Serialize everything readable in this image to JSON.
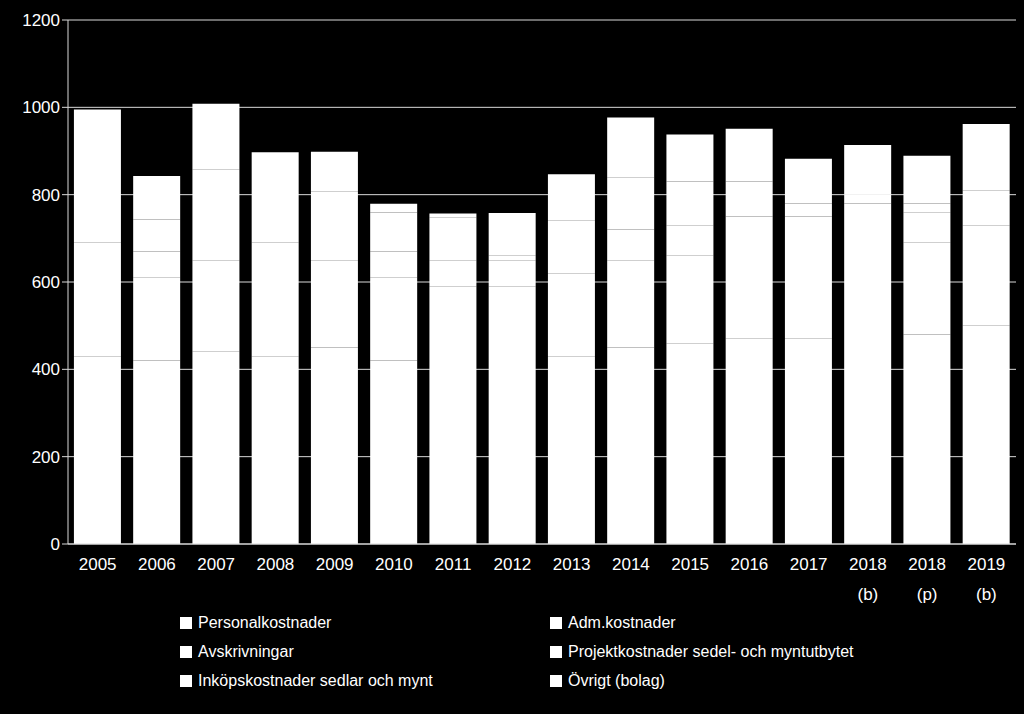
{
  "chart_data": {
    "type": "bar",
    "stacked": true,
    "grid": true,
    "legend": "bottom",
    "categories": [
      "2005",
      "2006",
      "2007",
      "2008",
      "2009",
      "2010",
      "2011",
      "2012",
      "2013",
      "2014",
      "2015",
      "2016",
      "2017",
      "2018 (b)",
      "2018 (p)",
      "2019 (b)"
    ],
    "series": [
      {
        "name": "Personalkostnader",
        "color": "#ffffff",
        "values": [
          430,
          420,
          440,
          430,
          450,
          420,
          410,
          410,
          430,
          450,
          460,
          470,
          470,
          490,
          480,
          500
        ]
      },
      {
        "name": "Adm.kostnader",
        "color": "#ffffff",
        "values": [
          200,
          190,
          210,
          200,
          200,
          190,
          180,
          180,
          190,
          200,
          200,
          210,
          210,
          220,
          210,
          230
        ]
      },
      {
        "name": "Avskrivningar",
        "color": "#ffffff",
        "values": [
          60,
          60,
          60,
          60,
          60,
          60,
          60,
          60,
          60,
          70,
          70,
          70,
          70,
          70,
          70,
          80
        ]
      },
      {
        "name": "Projektkostnader sedel- och myntutbytet",
        "color": "#ffffff",
        "values": [
          0,
          0,
          0,
          0,
          0,
          0,
          0,
          10,
          60,
          120,
          100,
          80,
          30,
          20,
          20,
          10
        ]
      },
      {
        "name": "Inköpskostnader sedlar och mynt",
        "color": "#ffffff",
        "values": [
          155,
          73,
          148,
          107,
          98,
          89,
          97,
          98,
          107,
          137,
          108,
          121,
          102,
          114,
          109,
          142
        ]
      },
      {
        "name": "Övrigt (bolag)",
        "color": "#ffffff",
        "values": [
          150,
          100,
          150,
          100,
          90,
          20,
          10,
          0,
          0,
          0,
          0,
          0,
          0,
          0,
          0,
          0
        ]
      }
    ],
    "ylim": [
      0,
      1200
    ],
    "yticks": [
      0,
      200,
      400,
      600,
      800,
      1000,
      1200
    ]
  }
}
